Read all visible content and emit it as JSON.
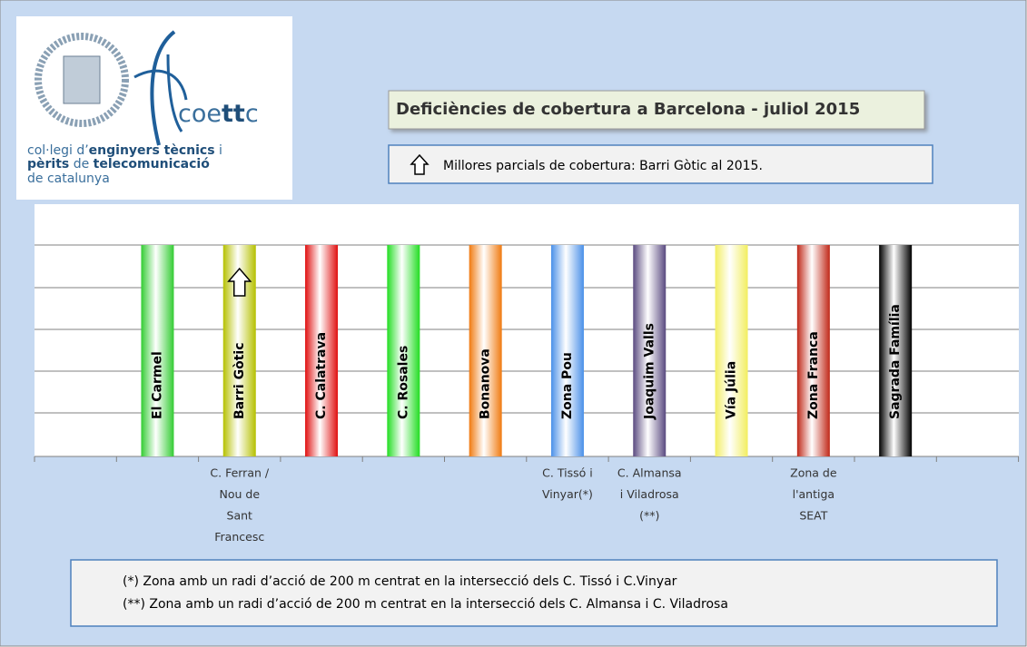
{
  "logo": {
    "brand": [
      "coe",
      "tt",
      "c"
    ],
    "lines": [
      [
        "col·legi d’",
        "enginyers tècnics",
        " i"
      ],
      [
        "pèrits",
        " de ",
        "telecomunicació"
      ],
      [
        "de catalunya"
      ]
    ]
  },
  "title": "Deficiències de cobertura a Barcelona - juliol 2015",
  "legend": "Millores parcials de cobertura: Barri Gòtic al 2015.",
  "columns": [
    {
      "name": "El Carmel",
      "color": "#33cc33",
      "sublabel": []
    },
    {
      "name": "Barri Gòtic",
      "color": "#b5c000",
      "sublabel": [
        "C. Ferran /",
        "Nou de",
        "Sant",
        "Francesc"
      ],
      "improved": true
    },
    {
      "name": "C. Calatrava",
      "color": "#e01010",
      "sublabel": []
    },
    {
      "name": "C. Rosales",
      "color": "#22dd22",
      "sublabel": []
    },
    {
      "name": "Bonanova",
      "color": "#f07a10",
      "sublabel": []
    },
    {
      "name": "Zona Pou",
      "color": "#4a90e8",
      "sublabel": [
        "C. Tissó i",
        "Vinyar(*)"
      ]
    },
    {
      "name": "Joaquim Valls",
      "color": "#5a4a80",
      "sublabel": [
        "C. Almansa",
        "i Viladrosa",
        "(**)"
      ]
    },
    {
      "name": "Vía Júlia",
      "color": "#f2ee60",
      "sublabel": []
    },
    {
      "name": "Zona Franca",
      "color": "#c02818",
      "sublabel": [
        "Zona de",
        "l'antiga",
        "SEAT"
      ]
    },
    {
      "name": "Sagrada Família",
      "color": "#000000",
      "sublabel": []
    }
  ],
  "notes": [
    "(*) Zona amb un radi d’acció de 200 m centrat en la intersecció dels C. Tissó i C.Vinyar",
    "(**) Zona amb un radi d’acció de 200 m centrat en la intersecció dels C. Almansa i C. Viladrosa"
  ]
}
